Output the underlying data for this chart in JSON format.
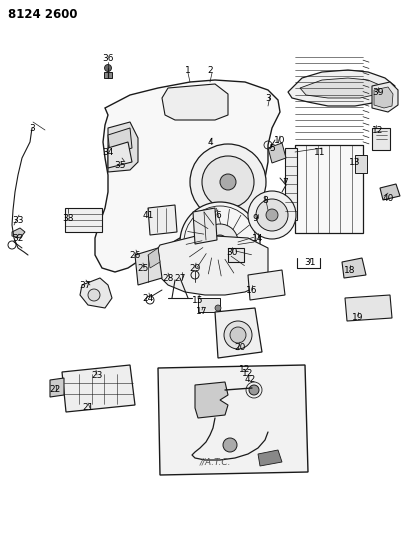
{
  "title": "8124 2600",
  "bg_color": "#ffffff",
  "line_color": "#1a1a1a",
  "fig_width": 4.1,
  "fig_height": 5.33,
  "dpi": 100,
  "part_labels": [
    [
      "36",
      108,
      58
    ],
    [
      "1",
      188,
      70
    ],
    [
      "2",
      210,
      70
    ],
    [
      "3",
      32,
      128
    ],
    [
      "3",
      268,
      98
    ],
    [
      "34",
      108,
      152
    ],
    [
      "35",
      120,
      165
    ],
    [
      "4",
      210,
      142
    ],
    [
      "5",
      272,
      148
    ],
    [
      "10",
      280,
      140
    ],
    [
      "7",
      285,
      182
    ],
    [
      "8",
      265,
      200
    ],
    [
      "9",
      255,
      218
    ],
    [
      "11",
      320,
      152
    ],
    [
      "12",
      378,
      130
    ],
    [
      "13",
      355,
      162
    ],
    [
      "6",
      218,
      215
    ],
    [
      "41",
      148,
      215
    ],
    [
      "38",
      68,
      218
    ],
    [
      "33",
      18,
      220
    ],
    [
      "32",
      18,
      238
    ],
    [
      "26",
      135,
      255
    ],
    [
      "25",
      143,
      268
    ],
    [
      "28",
      168,
      278
    ],
    [
      "27",
      180,
      278
    ],
    [
      "29",
      195,
      268
    ],
    [
      "30",
      232,
      252
    ],
    [
      "14",
      258,
      238
    ],
    [
      "15",
      198,
      300
    ],
    [
      "17",
      202,
      312
    ],
    [
      "16",
      252,
      290
    ],
    [
      "37",
      85,
      285
    ],
    [
      "24",
      148,
      298
    ],
    [
      "40",
      388,
      198
    ],
    [
      "31",
      310,
      262
    ],
    [
      "18",
      350,
      270
    ],
    [
      "20",
      240,
      348
    ],
    [
      "19",
      358,
      318
    ],
    [
      "39",
      378,
      92
    ],
    [
      "22",
      55,
      390
    ],
    [
      "23",
      97,
      375
    ],
    [
      "21",
      88,
      408
    ],
    [
      "12",
      245,
      370
    ],
    [
      "42",
      250,
      380
    ]
  ]
}
